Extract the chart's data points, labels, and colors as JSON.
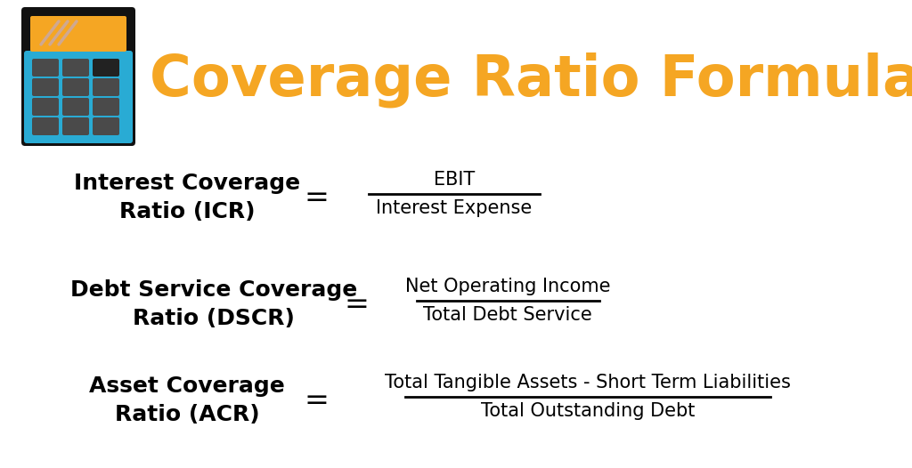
{
  "title": "Coverage Ratio Formula",
  "title_color": "#F5A623",
  "title_fontsize": 46,
  "bg_color": "#FFFFFF",
  "formula1_label_line1": "Interest Coverage",
  "formula1_label_line2": "Ratio (ICR)",
  "formula1_numerator": "EBIT",
  "formula1_denominator": "Interest Expense",
  "formula2_label_line1": "Debt Service Coverage",
  "formula2_label_line2": "Ratio (DSCR)",
  "formula2_numerator": "Net Operating Income",
  "formula2_denominator": "Total Debt Service",
  "formula3_label_line1": "Asset Coverage",
  "formula3_label_line2": "Ratio (ACR)",
  "formula3_numerator": "Total Tangible Assets - Short Term Liabilities",
  "formula3_denominator": "Total Outstanding Debt",
  "label_color": "#000000",
  "formula_color": "#000000",
  "equals_color": "#000000",
  "label_fontsize": 18,
  "formula_fontsize": 15,
  "equals_fontsize": 24,
  "calc_body_color": "#29ABD4",
  "calc_screen_bg": "#000000",
  "calc_screen_orange": "#F5A623",
  "calc_btn_color": "#4A4A4A",
  "calc_btn_dark": "#222222"
}
